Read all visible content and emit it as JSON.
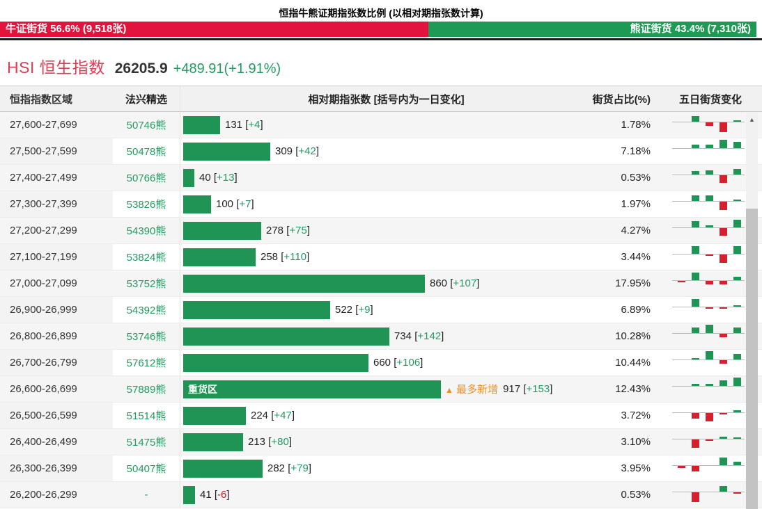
{
  "title": "恒指牛熊证期指张数比例 (以相对期指张数计算)",
  "ratio_bar": {
    "bull_text": "牛证街货 56.6% (9,518张)",
    "bull_percent": 56.6,
    "bear_text": "熊证街货 43.4% (7,310张)",
    "bear_percent": 43.4
  },
  "index_header": {
    "name": "HSI 恒生指数",
    "price": "26205.9",
    "change": "+489.91(+1.91%)"
  },
  "table": {
    "headers": [
      "恒指指数区域",
      "法兴精选",
      "相对期指张数 [括号内为一日变化]",
      "街货占比(%)",
      "五日街货变化"
    ],
    "heavy_zone_label": "重货区",
    "max_new_label": "最多新增",
    "max_new_icon": "▲",
    "rows": [
      {
        "range": "27,600-27,699",
        "code": "50746熊",
        "value": 131,
        "change_text": "+4",
        "percent": "1.78%",
        "heavy": false,
        "five_day": [
          0,
          5,
          -3,
          -9,
          1
        ]
      },
      {
        "range": "27,500-27,599",
        "code": "50478熊",
        "value": 309,
        "change_text": "+42",
        "percent": "7.18%",
        "heavy": false,
        "five_day": [
          0,
          3,
          3,
          8,
          6
        ]
      },
      {
        "range": "27,400-27,499",
        "code": "50766熊",
        "value": 40,
        "change_text": "+13",
        "percent": "0.53%",
        "heavy": false,
        "five_day": [
          0,
          3,
          4,
          -7,
          5
        ]
      },
      {
        "range": "27,300-27,399",
        "code": "53826熊",
        "value": 100,
        "change_text": "+7",
        "percent": "1.97%",
        "heavy": false,
        "five_day": [
          0,
          5,
          5,
          -8,
          1
        ]
      },
      {
        "range": "27,200-27,299",
        "code": "54390熊",
        "value": 278,
        "change_text": "+75",
        "percent": "4.27%",
        "heavy": false,
        "five_day": [
          0,
          6,
          2,
          -7,
          7
        ]
      },
      {
        "range": "27,100-27,199",
        "code": "53824熊",
        "value": 258,
        "change_text": "+110",
        "percent": "3.44%",
        "heavy": false,
        "five_day": [
          0,
          7,
          -1,
          -8,
          7
        ]
      },
      {
        "range": "27,000-27,099",
        "code": "53752熊",
        "value": 860,
        "change_text": "+107",
        "percent": "17.95%",
        "heavy": false,
        "five_day": [
          -1,
          7,
          -3,
          -3,
          3
        ]
      },
      {
        "range": "26,900-26,999",
        "code": "54392熊",
        "value": 522,
        "change_text": "+9",
        "percent": "6.89%",
        "heavy": false,
        "five_day": [
          0,
          7,
          -1,
          -1,
          1
        ]
      },
      {
        "range": "26,800-26,899",
        "code": "53746熊",
        "value": 734,
        "change_text": "+142",
        "percent": "10.28%",
        "heavy": false,
        "five_day": [
          0,
          5,
          8,
          -3,
          5
        ]
      },
      {
        "range": "26,700-26,799",
        "code": "57612熊",
        "value": 660,
        "change_text": "+106",
        "percent": "10.44%",
        "heavy": false,
        "five_day": [
          0,
          1,
          8,
          -3,
          5
        ]
      },
      {
        "range": "26,600-26,699",
        "code": "57889熊",
        "value": 917,
        "change_text": "+153",
        "percent": "12.43%",
        "heavy": true,
        "five_day": [
          0,
          2,
          2,
          5,
          8
        ]
      },
      {
        "range": "26,500-26,599",
        "code": "51514熊",
        "value": 224,
        "change_text": "+47",
        "percent": "3.72%",
        "heavy": false,
        "five_day": [
          0,
          -5,
          -8,
          -1,
          2
        ]
      },
      {
        "range": "26,400-26,499",
        "code": "51475熊",
        "value": 213,
        "change_text": "+80",
        "percent": "3.10%",
        "heavy": false,
        "five_day": [
          0,
          -8,
          -1,
          2,
          1
        ]
      },
      {
        "range": "26,300-26,399",
        "code": "50407熊",
        "value": 282,
        "change_text": "+79",
        "percent": "3.95%",
        "heavy": false,
        "five_day": [
          -2,
          -5,
          0,
          7,
          3
        ]
      },
      {
        "range": "26,200-26,299",
        "code": "-",
        "value": 41,
        "change_text": "-6",
        "percent": "0.53%",
        "heavy": false,
        "five_day": [
          0,
          -9,
          0,
          5,
          -1
        ]
      }
    ]
  },
  "scrollbar": {
    "up_icon": "▲"
  },
  "colors": {
    "bull_red": "#e2133c",
    "bear_green": "#1f9a55",
    "bar_green": "#1f9454",
    "mini_green": "#1f9454",
    "mini_red": "#d7202e",
    "text_green": "#239a5f",
    "neg_red": "#cc1122",
    "orange": "#ef8f1f",
    "index_red": "#e23c55",
    "bracket": "#222222"
  },
  "chart_data": {
    "type": "bar",
    "title": "相对期指张数 [括号内为一日变化]",
    "categories": [
      "27,600-27,699",
      "27,500-27,599",
      "27,400-27,499",
      "27,300-27,399",
      "27,200-27,299",
      "27,100-27,199",
      "27,000-27,099",
      "26,900-26,999",
      "26,800-26,899",
      "26,700-26,799",
      "26,600-26,699",
      "26,500-26,599",
      "26,400-26,499",
      "26,300-26,399",
      "26,200-26,299"
    ],
    "values": [
      131,
      309,
      40,
      100,
      278,
      258,
      860,
      522,
      734,
      660,
      917,
      224,
      213,
      282,
      41
    ],
    "one_day_change": [
      4,
      42,
      13,
      7,
      75,
      110,
      107,
      9,
      142,
      106,
      153,
      47,
      80,
      79,
      -6
    ],
    "street_percent": [
      1.78,
      7.18,
      0.53,
      1.97,
      4.27,
      3.44,
      17.95,
      6.89,
      10.28,
      10.44,
      12.43,
      3.72,
      3.1,
      3.95,
      0.53
    ],
    "heavy_zone_category": "26,600-26,699",
    "max_new_increase": {
      "category": "26,600-26,699",
      "value": 917,
      "change": 153
    },
    "bull_bear_ratio": {
      "bull": 56.6,
      "bear": 43.4,
      "bull_lots": 9518,
      "bear_lots": 7310
    },
    "orientation": "horizontal",
    "xlim": [
      0,
      917
    ]
  }
}
